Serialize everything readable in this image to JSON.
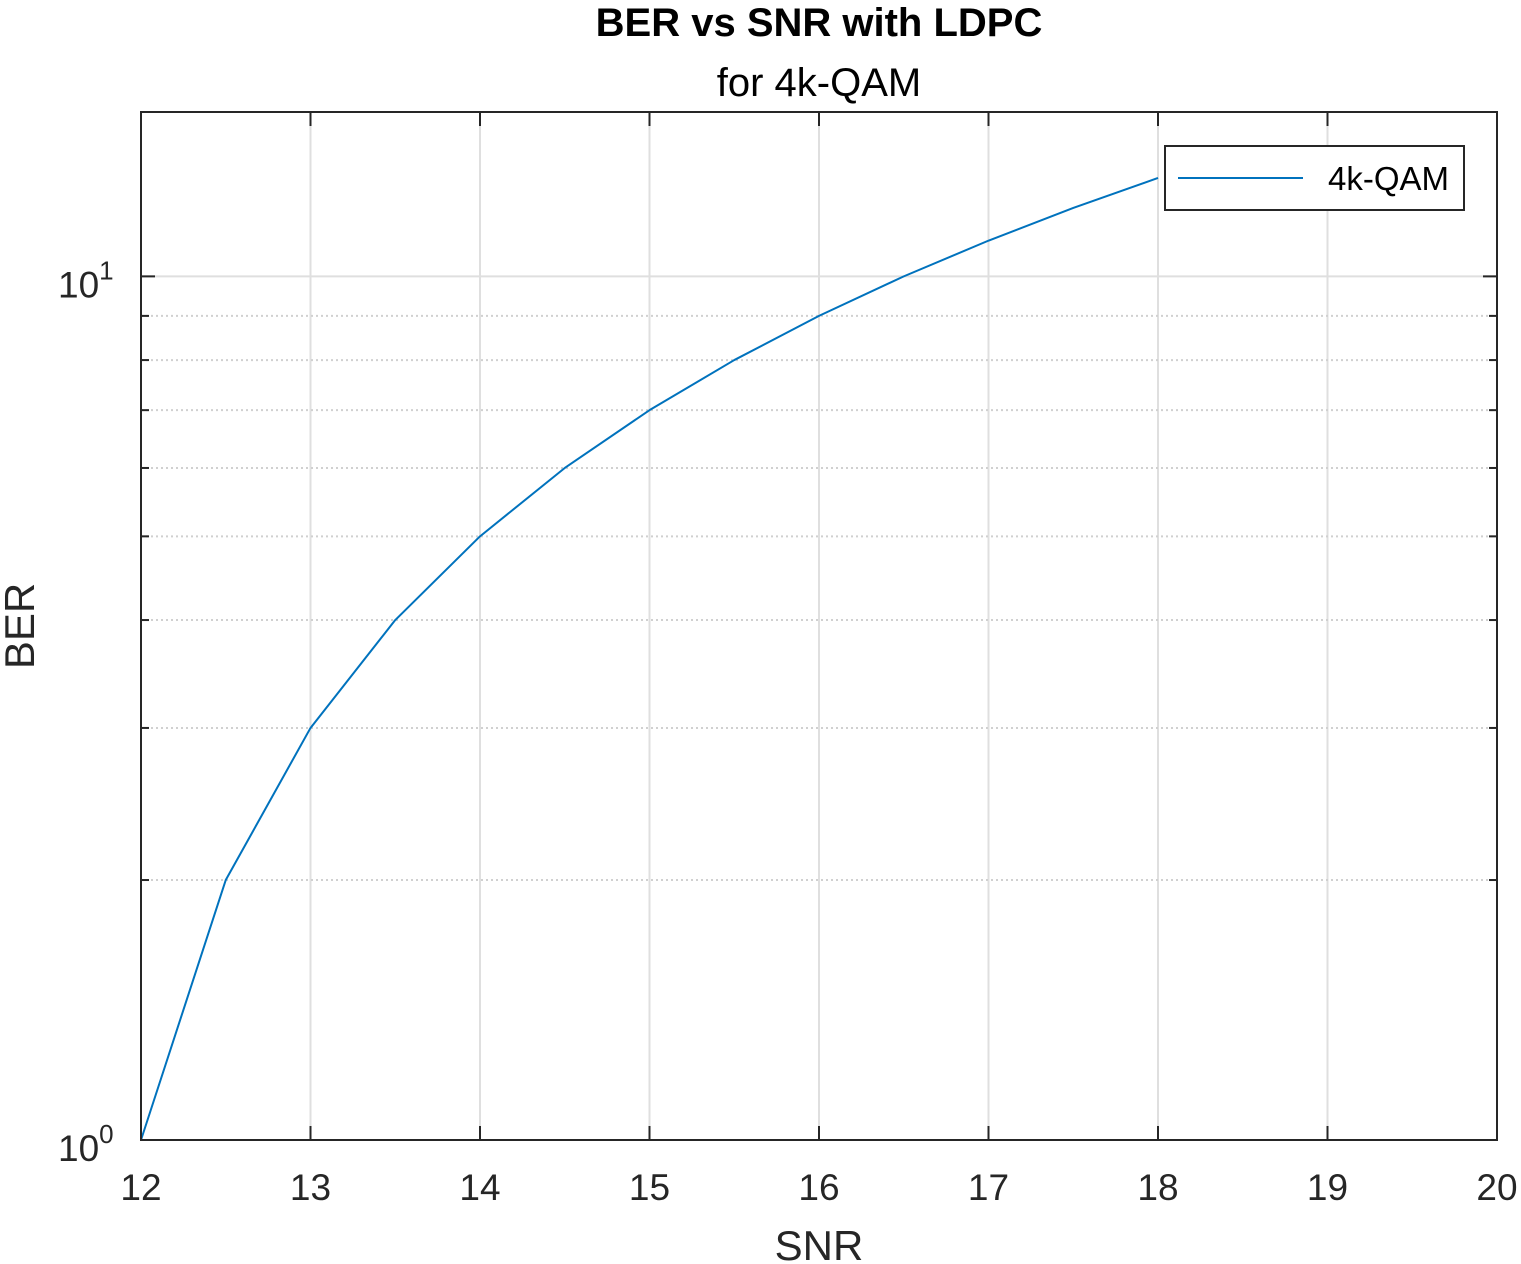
{
  "chart_data": {
    "type": "line",
    "title": "BER vs SNR with LDPC",
    "subtitle": "for 4k-QAM",
    "xlabel": "SNR",
    "ylabel": "BER",
    "xlim": [
      12,
      20
    ],
    "ylim": [
      1,
      15.5
    ],
    "yscale": "log",
    "grid": true,
    "legend_location": "top-right",
    "x_ticks": [
      12,
      13,
      14,
      15,
      16,
      17,
      18,
      19,
      20
    ],
    "x_tick_labels": [
      "12",
      "13",
      "14",
      "15",
      "16",
      "17",
      "18",
      "19",
      "20"
    ],
    "y_major_ticks": [
      {
        "value": 1,
        "base": "10",
        "exponent": "0"
      },
      {
        "value": 10,
        "base": "10",
        "exponent": "1"
      }
    ],
    "y_minor_ticks": [
      2,
      3,
      4,
      5,
      6,
      7,
      8,
      9
    ],
    "series": [
      {
        "name": "4k-QAM",
        "color": "#0072bd",
        "x": [
          12,
          12.5,
          13,
          13.5,
          14,
          14.5,
          15,
          15.5,
          16,
          16.5,
          17,
          17.5,
          18
        ],
        "y": [
          1.0,
          2.0,
          3.0,
          4.0,
          5.0,
          6.0,
          7.0,
          8.0,
          9.0,
          10.0,
          11.0,
          12.0,
          13.0
        ]
      }
    ]
  },
  "colors": {
    "axis": "#262626",
    "grid": "#dfdfdf",
    "line": "#0072bd"
  }
}
